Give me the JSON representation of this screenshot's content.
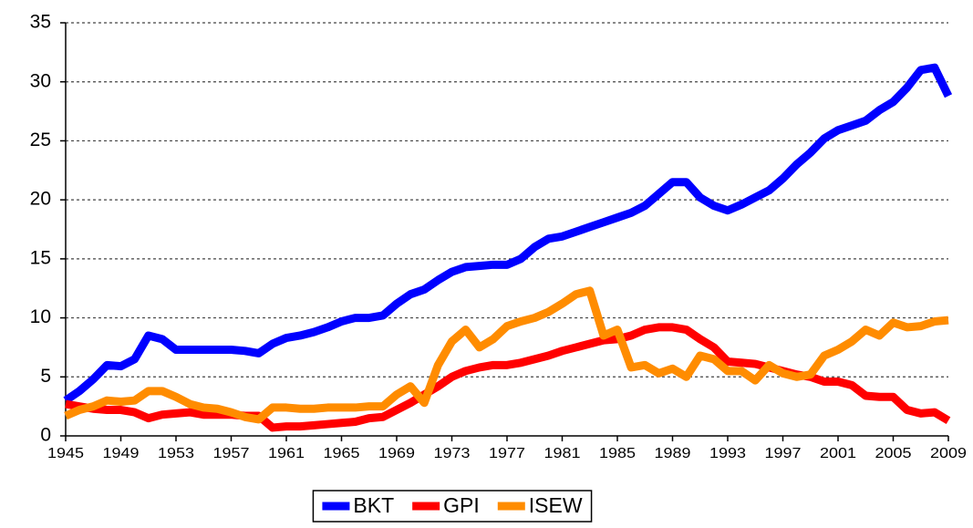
{
  "chart_data": {
    "type": "line",
    "x": [
      1945,
      1946,
      1947,
      1948,
      1949,
      1950,
      1951,
      1952,
      1953,
      1954,
      1955,
      1956,
      1957,
      1958,
      1959,
      1960,
      1961,
      1962,
      1963,
      1964,
      1965,
      1966,
      1967,
      1968,
      1969,
      1970,
      1971,
      1972,
      1973,
      1974,
      1975,
      1976,
      1977,
      1978,
      1979,
      1980,
      1981,
      1982,
      1983,
      1984,
      1985,
      1986,
      1987,
      1988,
      1989,
      1990,
      1991,
      1992,
      1993,
      1994,
      1995,
      1996,
      1997,
      1998,
      1999,
      2000,
      2001,
      2002,
      2003,
      2004,
      2005,
      2006,
      2007,
      2008,
      2009
    ],
    "series": [
      {
        "name": "BKT",
        "color": "#0000ff",
        "values": [
          3,
          3.8,
          4.8,
          6.0,
          5.9,
          6.5,
          8.5,
          8.2,
          7.3,
          7.3,
          7.3,
          7.3,
          7.3,
          7.2,
          7.0,
          7.8,
          8.3,
          8.5,
          8.8,
          9.2,
          9.7,
          10.0,
          10.0,
          10.2,
          11.2,
          12.0,
          12.4,
          13.2,
          13.9,
          14.3,
          14.4,
          14.5,
          14.5,
          15.0,
          16.0,
          16.7,
          16.9,
          17.3,
          17.7,
          18.1,
          18.5,
          18.9,
          19.5,
          20.5,
          21.5,
          21.5,
          20.2,
          19.5,
          19.1,
          19.6,
          20.2,
          20.8,
          21.8,
          23.0,
          24.0,
          25.2,
          25.9,
          26.3,
          26.7,
          27.6,
          28.3,
          29.5,
          31.0,
          31.2,
          28.8
        ]
      },
      {
        "name": "GPI",
        "color": "#ff0000",
        "values": [
          2.7,
          2.5,
          2.3,
          2.2,
          2.2,
          2.0,
          1.5,
          1.8,
          1.9,
          2.0,
          1.8,
          1.8,
          1.8,
          1.7,
          1.7,
          0.7,
          0.8,
          0.8,
          0.9,
          1.0,
          1.1,
          1.2,
          1.5,
          1.6,
          2.2,
          2.8,
          3.5,
          4.2,
          5.0,
          5.5,
          5.8,
          6.0,
          6.0,
          6.2,
          6.5,
          6.8,
          7.2,
          7.5,
          7.8,
          8.1,
          8.2,
          8.5,
          9.0,
          9.2,
          9.2,
          9.0,
          8.2,
          7.5,
          6.3,
          6.2,
          6.1,
          5.8,
          5.5,
          5.2,
          5.0,
          4.6,
          4.6,
          4.3,
          3.4,
          3.3,
          3.3,
          2.2,
          1.9,
          2.0,
          1.3
        ]
      },
      {
        "name": "ISEW",
        "color": "#ff8c00",
        "values": [
          1.7,
          2.2,
          2.5,
          3.0,
          2.9,
          3.0,
          3.8,
          3.8,
          3.3,
          2.7,
          2.4,
          2.3,
          2.0,
          1.6,
          1.4,
          2.4,
          2.4,
          2.3,
          2.3,
          2.4,
          2.4,
          2.4,
          2.5,
          2.5,
          3.5,
          4.2,
          2.8,
          6.0,
          8.0,
          9.0,
          7.5,
          8.2,
          9.3,
          9.7,
          10.0,
          10.5,
          11.2,
          12.0,
          12.3,
          8.5,
          9.0,
          5.8,
          6.0,
          5.3,
          5.7,
          5.0,
          6.8,
          6.5,
          5.5,
          5.5,
          4.7,
          6.0,
          5.3,
          5.0,
          5.2,
          6.8,
          7.3,
          8.0,
          9.0,
          8.5,
          9.6,
          9.2,
          9.3,
          9.7,
          9.8
        ]
      }
    ],
    "xlim": [
      1945,
      2009
    ],
    "xticks": [
      1945,
      1949,
      1953,
      1957,
      1961,
      1965,
      1969,
      1973,
      1977,
      1981,
      1985,
      1989,
      1993,
      1997,
      2001,
      2005,
      2009
    ],
    "ylim": [
      0,
      35
    ],
    "yticks": [
      0,
      5,
      10,
      15,
      20,
      25,
      30,
      35
    ],
    "grid": true,
    "legend": "bottom"
  }
}
